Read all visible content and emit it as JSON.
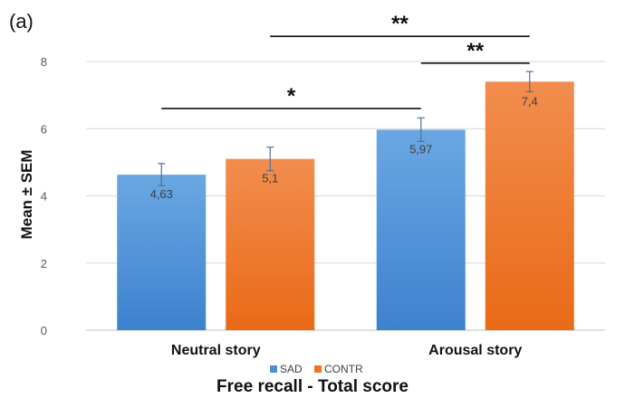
{
  "panel_label": "(a)",
  "colors": {
    "SAD": "#4a8fd6",
    "CONTR": "#ee7526"
  },
  "chart_data": {
    "type": "bar",
    "title": "",
    "xlabel": "Free recall - Total score",
    "ylabel": "Mean ± SEM",
    "ylim": [
      0,
      8
    ],
    "yticks": [
      0,
      2,
      4,
      6,
      8
    ],
    "grid": true,
    "legend_position": "bottom",
    "categories": [
      "Neutral story",
      "Arousal story"
    ],
    "series": [
      {
        "name": "SAD",
        "values": [
          4.63,
          5.97
        ],
        "sem": [
          0.33,
          0.35
        ],
        "labels": [
          "4,63",
          "5,97"
        ]
      },
      {
        "name": "CONTR",
        "values": [
          5.1,
          7.4
        ],
        "sem": [
          0.35,
          0.3
        ],
        "labels": [
          "5,1",
          "7,4"
        ]
      }
    ],
    "significance": [
      {
        "label": "*",
        "from": "Neutral story SAD",
        "to": "Arousal story SAD",
        "level": 6.6
      },
      {
        "label": "**",
        "from": "Neutral story CONTR",
        "to": "Arousal story CONTR",
        "level": 8.75
      },
      {
        "label": "**",
        "from": "Arousal story SAD",
        "to": "Arousal story CONTR",
        "level": 7.95
      }
    ]
  }
}
